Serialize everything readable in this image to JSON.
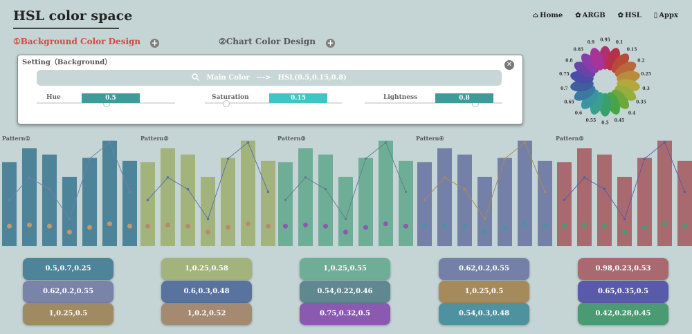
{
  "header": {
    "title": "HSL color space",
    "nav": [
      {
        "label": "Home",
        "icon": "house-icon"
      },
      {
        "label": "ARGB",
        "icon": "palette-icon"
      },
      {
        "label": "HSL",
        "icon": "palette-icon"
      },
      {
        "label": "Appx",
        "icon": "book-icon"
      }
    ]
  },
  "tabs": {
    "background": "①Background Color Design",
    "chart": "②Chart Color Design"
  },
  "setting": {
    "title": "Setting（Background）",
    "main_color_label": "Main Color",
    "arrow": "--->",
    "main_color_value": "HSL(0.5,0.15,0.8)",
    "sliders": [
      {
        "label": "Hue",
        "value": "0.5",
        "level": 0.5,
        "color": "#3d9c9b"
      },
      {
        "label": "Saturation",
        "value": "0.15",
        "level": 0.15,
        "color": "#42c4c4"
      },
      {
        "label": "Lightness",
        "value": "0.8",
        "level": 0.8,
        "color": "#3d9c9b"
      }
    ]
  },
  "wheel": {
    "labels": [
      "0.95",
      "0.1",
      "0.15",
      "0.2",
      "0.25",
      "0.3",
      "0.35",
      "0.4",
      "0.45",
      "0.5",
      "0.55",
      "0.6",
      "0.65",
      "0.7",
      "0.75",
      "0.8",
      "0.85",
      "0.9"
    ],
    "colors": [
      "#b0306e",
      "#b6304a",
      "#b84a38",
      "#b8683a",
      "#b98c3b",
      "#b4a83c",
      "#97ad3d",
      "#6ea83d",
      "#48a448",
      "#3aa06a",
      "#38a08c",
      "#3995a0",
      "#3b7aa0",
      "#3d5fa0",
      "#4a4ca8",
      "#6a43a8",
      "#8a3ca8",
      "#a8349a"
    ]
  },
  "patterns": [
    {
      "label": "Pattern①",
      "bar_color": "#4d8499",
      "line_color": "#6e7fb0",
      "dot_color": "#c5976a",
      "pills": [
        {
          "text": "0.5,0.7,0.25",
          "color": "#4d8499"
        },
        {
          "text": "0.62,0.2,0.55",
          "color": "#7a83a8"
        },
        {
          "text": "1,0.25,0.5",
          "color": "#a08a62"
        }
      ]
    },
    {
      "label": "Pattern②",
      "bar_color": "#a3b37c",
      "line_color": "#5a72a8",
      "dot_color": "#b58a70",
      "pills": [
        {
          "text": "1,0.25,0.58",
          "color": "#a3b37c"
        },
        {
          "text": "0.6,0.3,0.48",
          "color": "#5873a0"
        },
        {
          "text": "1,0.2,0.52",
          "color": "#a58a72"
        }
      ]
    },
    {
      "label": "Pattern③",
      "bar_color": "#6fae96",
      "line_color": "#5f8090",
      "dot_color": "#8a5ab0",
      "pills": [
        {
          "text": "1,0.25,0.55",
          "color": "#6fae96"
        },
        {
          "text": "0.54,0.22,0.46",
          "color": "#5f8890"
        },
        {
          "text": "0.75,0.32,0.5",
          "color": "#8a5ab0"
        }
      ]
    },
    {
      "label": "Pattern④",
      "bar_color": "#7480a8",
      "line_color": "#a68a5c",
      "dot_color": "#4e92a0",
      "pills": [
        {
          "text": "0.62,0.2,0.55",
          "color": "#7480a8"
        },
        {
          "text": "1,0.25,0.5",
          "color": "#a68a5c"
        },
        {
          "text": "0.54,0.3,0.48",
          "color": "#4e92a0"
        }
      ]
    },
    {
      "label": "Pattern⑤",
      "bar_color": "#a86a6e",
      "line_color": "#5a5aaa",
      "dot_color": "#4a9a72",
      "pills": [
        {
          "text": "0.98,0.23,0.53",
          "color": "#a86a6e"
        },
        {
          "text": "0.65,0.35,0.5",
          "color": "#5a5aaa"
        },
        {
          "text": "0.42,0.28,0.45",
          "color": "#4a9a72"
        }
      ]
    }
  ],
  "chart_data": {
    "type": "bar",
    "bar_values": [
      0.79,
      0.92,
      0.86,
      0.65,
      0.83,
      0.99,
      0.8
    ],
    "line_values": [
      0.36,
      0.61,
      0.48,
      0.15,
      0.82,
      1.0,
      0.45
    ],
    "dot_values": [
      0.17,
      0.18,
      0.17,
      0.12,
      0.16,
      0.19,
      0.17
    ]
  }
}
